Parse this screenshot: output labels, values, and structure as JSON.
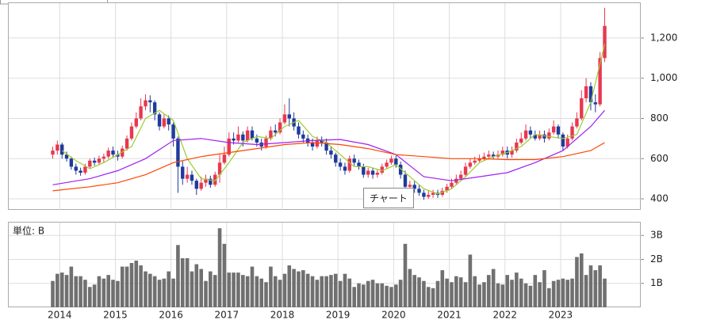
{
  "chart_data": [
    {
      "type": "candlestick",
      "x": [
        2013.875,
        2013.958,
        2014.042,
        2014.125,
        2014.208,
        2014.292,
        2014.375,
        2014.458,
        2014.542,
        2014.625,
        2014.708,
        2014.792,
        2014.875,
        2014.958,
        2015.042,
        2015.125,
        2015.208,
        2015.292,
        2015.375,
        2015.458,
        2015.542,
        2015.625,
        2015.708,
        2015.792,
        2015.875,
        2015.958,
        2016.042,
        2016.125,
        2016.208,
        2016.292,
        2016.375,
        2016.458,
        2016.542,
        2016.625,
        2016.708,
        2016.792,
        2016.875,
        2016.958,
        2017.042,
        2017.125,
        2017.208,
        2017.292,
        2017.375,
        2017.458,
        2017.542,
        2017.625,
        2017.708,
        2017.792,
        2017.875,
        2017.958,
        2018.042,
        2018.125,
        2018.208,
        2018.292,
        2018.375,
        2018.458,
        2018.542,
        2018.625,
        2018.708,
        2018.792,
        2018.875,
        2018.958,
        2019.042,
        2019.125,
        2019.208,
        2019.292,
        2019.375,
        2019.458,
        2019.542,
        2019.625,
        2019.708,
        2019.792,
        2019.875,
        2019.958,
        2020.042,
        2020.125,
        2020.208,
        2020.292,
        2020.375,
        2020.458,
        2020.542,
        2020.625,
        2020.708,
        2020.792,
        2020.875,
        2020.958,
        2021.042,
        2021.125,
        2021.208,
        2021.292,
        2021.375,
        2021.458,
        2021.542,
        2021.625,
        2021.708,
        2021.792,
        2021.875,
        2021.958,
        2022.042,
        2022.125,
        2022.208,
        2022.292,
        2022.375,
        2022.458,
        2022.542,
        2022.625,
        2022.708,
        2022.792,
        2022.875,
        2022.958,
        2023.042,
        2023.125,
        2023.208,
        2023.292,
        2023.375,
        2023.458,
        2023.542,
        2023.625,
        2023.708,
        2023.792
      ],
      "open": [
        620,
        640,
        670,
        620,
        600,
        560,
        540,
        530,
        560,
        590,
        580,
        600,
        610,
        640,
        620,
        610,
        650,
        700,
        760,
        800,
        860,
        890,
        880,
        820,
        760,
        800,
        770,
        700,
        560,
        500,
        520,
        490,
        450,
        480,
        500,
        470,
        520,
        580,
        620,
        700,
        690,
        720,
        690,
        740,
        700,
        680,
        660,
        700,
        740,
        730,
        780,
        820,
        800,
        760,
        720,
        700,
        680,
        660,
        690,
        680,
        640,
        620,
        580,
        560,
        540,
        600,
        580,
        560,
        520,
        540,
        520,
        530,
        560,
        580,
        600,
        570,
        520,
        460,
        470,
        450,
        430,
        410,
        420,
        430,
        420,
        440,
        460,
        480,
        500,
        520,
        560,
        580,
        590,
        600,
        610,
        620,
        610,
        620,
        640,
        620,
        640,
        680,
        700,
        740,
        720,
        700,
        720,
        700,
        730,
        760,
        720,
        660,
        700,
        760,
        800,
        900,
        960,
        880,
        870,
        1100
      ],
      "high": [
        660,
        690,
        680,
        635,
        610,
        575,
        555,
        575,
        600,
        605,
        615,
        625,
        655,
        660,
        640,
        665,
        715,
        780,
        830,
        900,
        920,
        915,
        890,
        830,
        820,
        815,
        780,
        710,
        590,
        560,
        540,
        500,
        510,
        520,
        515,
        535,
        620,
        660,
        730,
        730,
        760,
        735,
        760,
        760,
        720,
        700,
        715,
        760,
        770,
        800,
        870,
        900,
        830,
        780,
        740,
        720,
        700,
        710,
        710,
        700,
        660,
        630,
        600,
        580,
        615,
        620,
        595,
        575,
        555,
        555,
        545,
        575,
        595,
        615,
        615,
        585,
        540,
        490,
        490,
        470,
        445,
        440,
        445,
        445,
        455,
        475,
        500,
        520,
        540,
        580,
        600,
        610,
        620,
        630,
        640,
        635,
        640,
        660,
        660,
        660,
        700,
        730,
        770,
        760,
        740,
        740,
        740,
        750,
        790,
        770,
        730,
        720,
        780,
        830,
        940,
        1000,
        980,
        920,
        1130,
        1350
      ],
      "low": [
        600,
        620,
        600,
        585,
        545,
        520,
        515,
        520,
        550,
        565,
        570,
        580,
        600,
        605,
        590,
        600,
        640,
        690,
        750,
        790,
        840,
        830,
        790,
        740,
        750,
        740,
        660,
        430,
        470,
        480,
        470,
        420,
        440,
        460,
        455,
        460,
        480,
        570,
        610,
        670,
        680,
        660,
        680,
        690,
        660,
        640,
        650,
        690,
        710,
        720,
        770,
        760,
        740,
        700,
        680,
        660,
        640,
        650,
        660,
        620,
        600,
        560,
        540,
        520,
        530,
        565,
        545,
        505,
        505,
        500,
        505,
        520,
        550,
        570,
        555,
        500,
        420,
        440,
        430,
        415,
        395,
        400,
        405,
        405,
        410,
        430,
        450,
        470,
        490,
        510,
        550,
        570,
        580,
        590,
        595,
        595,
        600,
        610,
        600,
        605,
        630,
        670,
        690,
        700,
        690,
        690,
        680,
        690,
        720,
        700,
        640,
        650,
        690,
        750,
        790,
        880,
        840,
        830,
        860,
        1080
      ],
      "close": [
        640,
        670,
        620,
        600,
        560,
        540,
        530,
        560,
        590,
        580,
        600,
        610,
        640,
        620,
        610,
        650,
        700,
        760,
        800,
        860,
        890,
        880,
        820,
        760,
        800,
        770,
        700,
        560,
        500,
        520,
        490,
        450,
        480,
        500,
        470,
        520,
        580,
        620,
        700,
        690,
        720,
        690,
        740,
        700,
        680,
        660,
        700,
        740,
        730,
        780,
        820,
        800,
        760,
        720,
        700,
        680,
        660,
        690,
        680,
        640,
        620,
        580,
        560,
        540,
        600,
        580,
        560,
        520,
        540,
        520,
        530,
        560,
        580,
        600,
        570,
        520,
        460,
        470,
        450,
        430,
        410,
        420,
        430,
        420,
        440,
        460,
        480,
        500,
        520,
        560,
        580,
        590,
        600,
        610,
        620,
        610,
        620,
        640,
        620,
        640,
        680,
        700,
        740,
        720,
        700,
        720,
        700,
        730,
        760,
        720,
        660,
        700,
        760,
        800,
        900,
        960,
        880,
        870,
        1100,
        1260
      ],
      "up_color": "#e8384f",
      "down_color": "#1f3a9c",
      "moving_averages": [
        {
          "color": "#9acd32",
          "x": [
            2014.042,
            2014.292,
            2014.542,
            2014.792,
            2015.042,
            2015.292,
            2015.542,
            2015.792,
            2016.042,
            2016.292,
            2016.542,
            2016.792,
            2017.042,
            2017.292,
            2017.542,
            2017.792,
            2018.042,
            2018.292,
            2018.542,
            2018.792,
            2019.042,
            2019.292,
            2019.542,
            2019.792,
            2020.042,
            2020.292,
            2020.542,
            2020.792,
            2021.042,
            2021.292,
            2021.542,
            2021.792,
            2022.042,
            2022.292,
            2022.542,
            2022.792,
            2023.042,
            2023.292,
            2023.542,
            2023.792
          ],
          "values": [
            640,
            590,
            550,
            580,
            620,
            660,
            800,
            840,
            790,
            600,
            500,
            490,
            580,
            680,
            710,
            700,
            760,
            790,
            710,
            680,
            620,
            560,
            560,
            540,
            570,
            510,
            450,
            425,
            450,
            510,
            580,
            610,
            630,
            660,
            720,
            710,
            700,
            720,
            880,
            1170
          ]
        },
        {
          "color": "#a020f0",
          "x": [
            2013.875,
            2014.542,
            2015.042,
            2015.542,
            2016.042,
            2016.542,
            2017.042,
            2017.542,
            2018.042,
            2018.542,
            2019.042,
            2019.542,
            2020.042,
            2020.542,
            2021.042,
            2021.542,
            2022.042,
            2022.542,
            2023.042,
            2023.542,
            2023.792
          ],
          "values": [
            470,
            500,
            540,
            600,
            690,
            700,
            680,
            670,
            680,
            690,
            695,
            670,
            620,
            510,
            490,
            510,
            530,
            580,
            640,
            760,
            840
          ]
        },
        {
          "color": "#ff4500",
          "x": [
            2013.875,
            2014.542,
            2015.042,
            2015.542,
            2016.042,
            2016.542,
            2017.042,
            2017.542,
            2018.042,
            2018.542,
            2019.042,
            2019.542,
            2020.042,
            2020.542,
            2021.042,
            2021.542,
            2022.042,
            2022.542,
            2023.042,
            2023.542,
            2023.792
          ],
          "values": [
            440,
            460,
            480,
            520,
            580,
            610,
            630,
            650,
            670,
            680,
            670,
            650,
            620,
            610,
            600,
            600,
            595,
            595,
            610,
            640,
            680
          ]
        }
      ],
      "xlim": [
        2013.07,
        2024.44
      ],
      "xticks": [
        2014,
        2015,
        2016,
        2017,
        2018,
        2019,
        2020,
        2021,
        2022,
        2023
      ],
      "ylim": [
        345,
        1377
      ],
      "yticks": [
        400,
        600,
        800,
        {
          "value": 1000,
          "label": "1,000"
        },
        {
          "value": 1200,
          "label": "1,200"
        }
      ],
      "grid": true,
      "annotation": "チャート"
    },
    {
      "type": "bar",
      "title": "単位: B",
      "color": "#707070",
      "x": [
        2013.875,
        2013.958,
        2014.042,
        2014.125,
        2014.208,
        2014.292,
        2014.375,
        2014.458,
        2014.542,
        2014.625,
        2014.708,
        2014.792,
        2014.875,
        2014.958,
        2015.042,
        2015.125,
        2015.208,
        2015.292,
        2015.375,
        2015.458,
        2015.542,
        2015.625,
        2015.708,
        2015.792,
        2015.875,
        2015.958,
        2016.042,
        2016.125,
        2016.208,
        2016.292,
        2016.375,
        2016.458,
        2016.542,
        2016.625,
        2016.708,
        2016.792,
        2016.875,
        2016.958,
        2017.042,
        2017.125,
        2017.208,
        2017.292,
        2017.375,
        2017.458,
        2017.542,
        2017.625,
        2017.708,
        2017.792,
        2017.875,
        2017.958,
        2018.042,
        2018.125,
        2018.208,
        2018.292,
        2018.375,
        2018.458,
        2018.542,
        2018.625,
        2018.708,
        2018.792,
        2018.875,
        2018.958,
        2019.042,
        2019.125,
        2019.208,
        2019.292,
        2019.375,
        2019.458,
        2019.542,
        2019.625,
        2019.708,
        2019.792,
        2019.875,
        2019.958,
        2020.042,
        2020.125,
        2020.208,
        2020.292,
        2020.375,
        2020.458,
        2020.542,
        2020.625,
        2020.708,
        2020.792,
        2020.875,
        2020.958,
        2021.042,
        2021.125,
        2021.208,
        2021.292,
        2021.375,
        2021.458,
        2021.542,
        2021.625,
        2021.708,
        2021.792,
        2021.875,
        2021.958,
        2022.042,
        2022.125,
        2022.208,
        2022.292,
        2022.375,
        2022.458,
        2022.542,
        2022.625,
        2022.708,
        2022.792,
        2022.875,
        2022.958,
        2023.042,
        2023.125,
        2023.208,
        2023.292,
        2023.375,
        2023.458,
        2023.542,
        2023.625,
        2023.708,
        2023.792
      ],
      "values": [
        1.1,
        1.4,
        1.45,
        1.35,
        1.7,
        1.3,
        1.3,
        1.15,
        0.85,
        0.95,
        1.3,
        1.2,
        1.35,
        1.15,
        1.1,
        1.7,
        1.7,
        1.85,
        1.95,
        1.75,
        1.5,
        1.4,
        1.3,
        1.15,
        1.2,
        1.5,
        1.2,
        2.6,
        2.05,
        2.05,
        1.5,
        1.8,
        1.6,
        1.1,
        1.5,
        1.35,
        3.3,
        2.65,
        1.45,
        1.45,
        1.45,
        1.35,
        1.3,
        1.7,
        1.3,
        1.2,
        1.05,
        1.7,
        1.3,
        1.15,
        1.4,
        1.75,
        1.6,
        1.5,
        1.55,
        1.4,
        1.3,
        1.15,
        1.3,
        1.3,
        1.35,
        1.4,
        1.1,
        1.4,
        1.2,
        0.85,
        1.0,
        0.95,
        1.1,
        1.15,
        1.0,
        1.0,
        0.9,
        0.85,
        0.95,
        1.15,
        2.65,
        1.6,
        1.35,
        1.25,
        1.1,
        0.85,
        0.8,
        1.1,
        1.55,
        1.2,
        1.05,
        1.3,
        1.25,
        1.05,
        2.2,
        1.3,
        0.95,
        1.05,
        1.35,
        1.6,
        1.0,
        0.95,
        1.35,
        1.15,
        1.45,
        1.2,
        1.0,
        0.9,
        1.35,
        1.05,
        1.55,
        0.8,
        1.1,
        1.15,
        1.2,
        1.15,
        1.2,
        2.1,
        2.25,
        1.35,
        1.75,
        1.55,
        1.75,
        1.2
      ],
      "xlim": [
        2013.07,
        2024.44
      ],
      "xticks": [
        2014,
        2015,
        2016,
        2017,
        2018,
        2019,
        2020,
        2021,
        2022,
        2023
      ],
      "ylim": [
        0,
        3.57
      ],
      "yticks": [
        {
          "value": 1,
          "label": "1B"
        },
        {
          "value": 2,
          "label": "2B"
        },
        {
          "value": 3,
          "label": "3B"
        }
      ],
      "grid": true
    }
  ]
}
